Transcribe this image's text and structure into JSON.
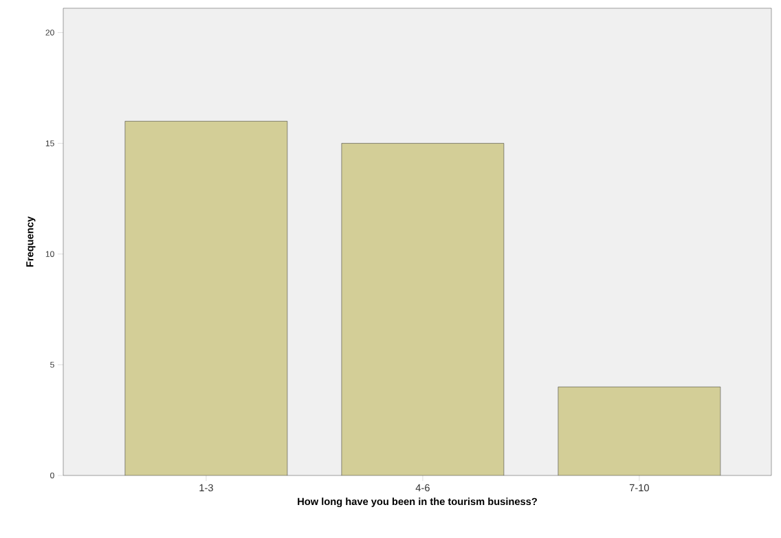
{
  "chart_data": {
    "type": "bar",
    "xlabel": "How long have you been in the tourism business?",
    "ylabel": "Frequency",
    "categories": [
      "1-3",
      "4-6",
      "7-10"
    ],
    "values": [
      16,
      15,
      4
    ],
    "color": "#d3ce97",
    "ylim": [
      0,
      21.1
    ],
    "yticks": [
      0,
      5,
      10,
      15,
      20
    ]
  }
}
